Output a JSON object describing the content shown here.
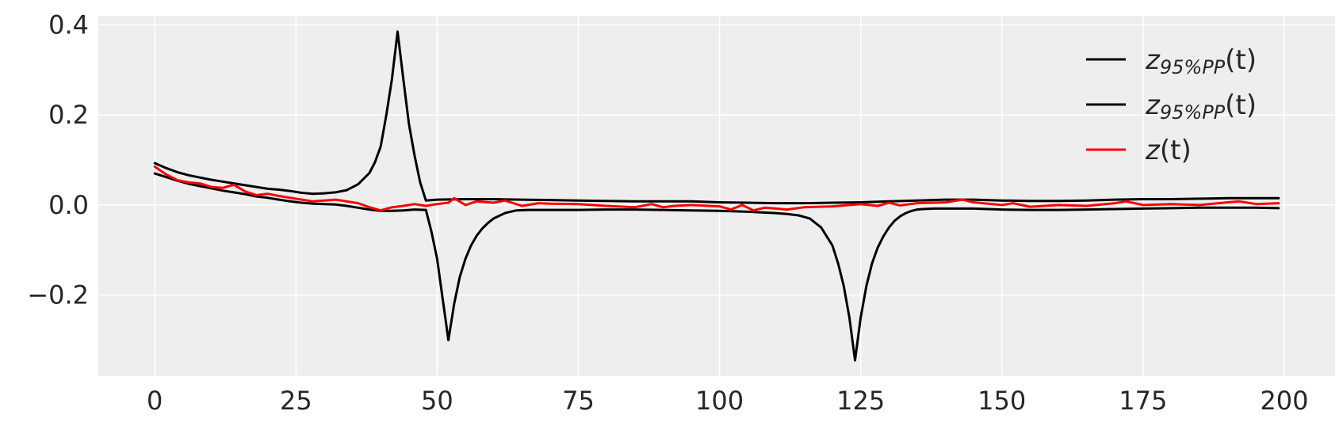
{
  "chart_data": {
    "type": "line",
    "title": "",
    "xlabel": "",
    "ylabel": "",
    "xlim": [
      -10,
      209
    ],
    "ylim": [
      -0.38,
      0.42
    ],
    "xticks": [
      0,
      25,
      50,
      75,
      100,
      125,
      150,
      175,
      200
    ],
    "yticks": [
      -0.2,
      0.0,
      0.2,
      0.4
    ],
    "xtick_labels": [
      "0",
      "25",
      "50",
      "75",
      "100",
      "125",
      "150",
      "175",
      "200"
    ],
    "ytick_labels": [
      "−0.2",
      "0.0",
      "0.2",
      "0.4"
    ],
    "grid": true,
    "legend_position": "top-right",
    "background_color": "#eeeeee",
    "series": [
      {
        "legend": {
          "base": "z",
          "sub": "95%PP",
          "tail": "(t)"
        },
        "color": "#000000",
        "x": [
          0,
          2,
          4,
          6,
          8,
          10,
          12,
          14,
          16,
          18,
          20,
          22,
          24,
          26,
          28,
          30,
          32,
          34,
          36,
          38,
          39,
          40,
          41,
          42,
          43,
          44,
          45,
          46,
          47,
          48,
          50,
          55,
          60,
          65,
          70,
          75,
          80,
          85,
          90,
          95,
          100,
          105,
          110,
          115,
          120,
          125,
          130,
          135,
          140,
          145,
          150,
          155,
          160,
          165,
          170,
          175,
          180,
          185,
          190,
          195,
          199
        ],
        "y": [
          0.093,
          0.082,
          0.073,
          0.066,
          0.061,
          0.056,
          0.052,
          0.048,
          0.044,
          0.04,
          0.036,
          0.034,
          0.031,
          0.027,
          0.025,
          0.026,
          0.028,
          0.033,
          0.046,
          0.071,
          0.095,
          0.13,
          0.2,
          0.28,
          0.385,
          0.28,
          0.18,
          0.11,
          0.05,
          0.01,
          0.012,
          0.013,
          0.013,
          0.012,
          0.011,
          0.01,
          0.009,
          0.008,
          0.008,
          0.008,
          0.006,
          0.005,
          0.004,
          0.004,
          0.005,
          0.006,
          0.008,
          0.01,
          0.012,
          0.012,
          0.01,
          0.009,
          0.009,
          0.01,
          0.012,
          0.013,
          0.013,
          0.014,
          0.015,
          0.015,
          0.015
        ]
      },
      {
        "legend": {
          "base": "z",
          "sub": "95%PP",
          "tail": "(t)"
        },
        "color": "#000000",
        "x": [
          0,
          2,
          4,
          6,
          8,
          10,
          12,
          14,
          16,
          18,
          20,
          22,
          24,
          26,
          28,
          30,
          32,
          34,
          36,
          38,
          40,
          42,
          44,
          46,
          48,
          49,
          50,
          51,
          52,
          53,
          54,
          55,
          56,
          57,
          58,
          59,
          60,
          62,
          64,
          66,
          70,
          75,
          80,
          85,
          90,
          95,
          100,
          105,
          110,
          112,
          114,
          116,
          118,
          120,
          121,
          122,
          123,
          124,
          125,
          126,
          127,
          128,
          129,
          130,
          131,
          132,
          133,
          134,
          135,
          136,
          138,
          140,
          145,
          150,
          155,
          160,
          165,
          170,
          175,
          180,
          185,
          190,
          195,
          199
        ],
        "y": [
          0.07,
          0.062,
          0.054,
          0.047,
          0.042,
          0.037,
          0.032,
          0.028,
          0.024,
          0.019,
          0.016,
          0.012,
          0.008,
          0.005,
          0.003,
          0.002,
          0.001,
          -0.002,
          -0.006,
          -0.01,
          -0.013,
          -0.013,
          -0.012,
          -0.01,
          -0.011,
          -0.06,
          -0.12,
          -0.21,
          -0.3,
          -0.22,
          -0.16,
          -0.12,
          -0.09,
          -0.068,
          -0.052,
          -0.04,
          -0.03,
          -0.018,
          -0.012,
          -0.011,
          -0.011,
          -0.011,
          -0.01,
          -0.01,
          -0.011,
          -0.012,
          -0.013,
          -0.015,
          -0.018,
          -0.02,
          -0.023,
          -0.03,
          -0.05,
          -0.09,
          -0.13,
          -0.18,
          -0.25,
          -0.345,
          -0.25,
          -0.18,
          -0.13,
          -0.095,
          -0.07,
          -0.05,
          -0.035,
          -0.025,
          -0.018,
          -0.013,
          -0.01,
          -0.009,
          -0.008,
          -0.008,
          -0.008,
          -0.01,
          -0.011,
          -0.011,
          -0.01,
          -0.009,
          -0.008,
          -0.007,
          -0.006,
          -0.006,
          -0.006,
          -0.007
        ]
      },
      {
        "legend": {
          "base": "z",
          "sub": "",
          "tail": "(t)"
        },
        "color": "#ff0000",
        "x": [
          0,
          2,
          4,
          6,
          8,
          10,
          12,
          14,
          16,
          18,
          20,
          22,
          24,
          26,
          28,
          30,
          32,
          34,
          36,
          38,
          40,
          42,
          44,
          46,
          48,
          50,
          52,
          53,
          55,
          57,
          60,
          62,
          65,
          68,
          70,
          75,
          80,
          85,
          88,
          90,
          92,
          95,
          100,
          102,
          104,
          106,
          108,
          110,
          112,
          115,
          120,
          125,
          128,
          130,
          132,
          135,
          140,
          143,
          145,
          150,
          152,
          155,
          160,
          165,
          170,
          172,
          175,
          180,
          185,
          190,
          192,
          195,
          199
        ],
        "y": [
          0.085,
          0.068,
          0.055,
          0.05,
          0.048,
          0.04,
          0.038,
          0.045,
          0.03,
          0.022,
          0.025,
          0.02,
          0.016,
          0.012,
          0.008,
          0.01,
          0.012,
          0.008,
          0.004,
          -0.005,
          -0.012,
          -0.005,
          -0.002,
          0.002,
          -0.002,
          0.002,
          0.005,
          0.015,
          0.0,
          0.008,
          0.005,
          0.01,
          -0.002,
          0.004,
          0.003,
          0.002,
          -0.002,
          -0.005,
          0.002,
          -0.005,
          -0.002,
          0.0,
          -0.003,
          -0.01,
          0.0,
          -0.012,
          -0.006,
          -0.008,
          -0.01,
          -0.005,
          -0.003,
          0.002,
          -0.002,
          0.005,
          -0.001,
          0.004,
          0.006,
          0.012,
          0.006,
          0.0,
          0.004,
          -0.004,
          0.0,
          -0.002,
          0.004,
          0.008,
          0.0,
          0.002,
          0.0,
          0.006,
          0.008,
          0.002,
          0.004
        ]
      }
    ]
  }
}
